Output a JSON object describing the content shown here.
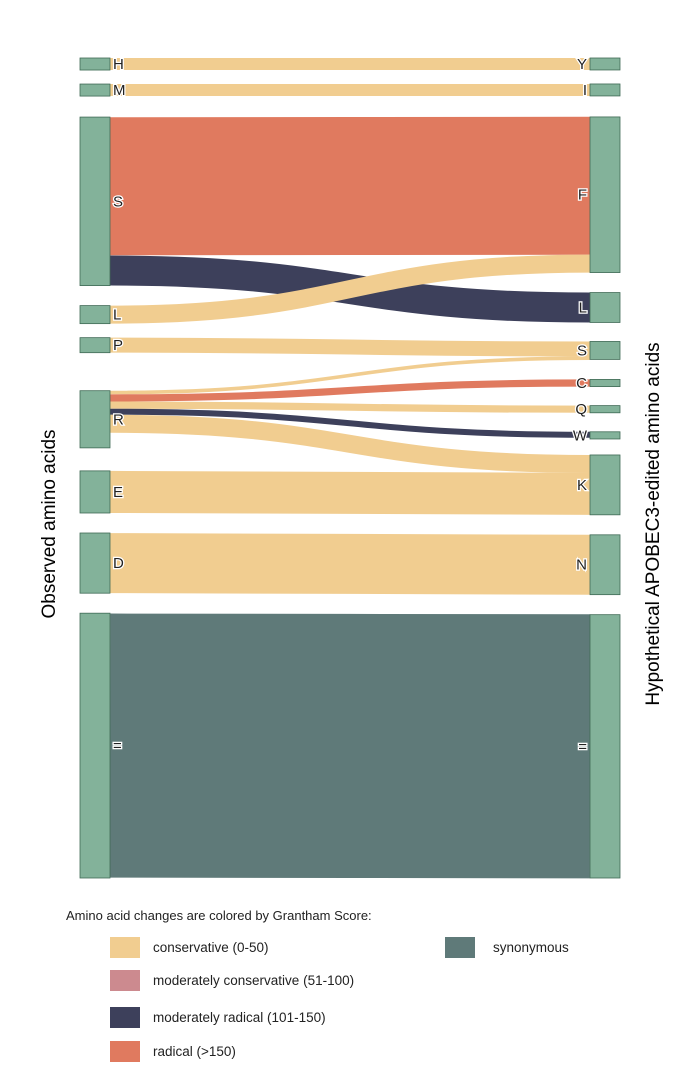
{
  "chart_data": {
    "type": "sankey",
    "left_axis_label": "Observed amino acids",
    "right_axis_label": "Hypothetical APOBEC3-edited amino acids",
    "left_nodes": [
      {
        "label": "H",
        "value": 2
      },
      {
        "label": "M",
        "value": 2
      },
      {
        "label": "S",
        "value": 28
      },
      {
        "label": "L",
        "value": 3
      },
      {
        "label": "P",
        "value": 2.5
      },
      {
        "label": "R",
        "value": 7
      },
      {
        "label": "E",
        "value": 7
      },
      {
        "label": "D",
        "value": 10
      },
      {
        "label": "=",
        "value": 44
      }
    ],
    "right_nodes": [
      {
        "label": "Y",
        "value": 2
      },
      {
        "label": "I",
        "value": 2
      },
      {
        "label": "F",
        "value": 26
      },
      {
        "label": "L",
        "value": 5
      },
      {
        "label": "S",
        "value": 3
      },
      {
        "label": "C",
        "value": 1.2
      },
      {
        "label": "Q",
        "value": 1.2
      },
      {
        "label": "W",
        "value": 1.2
      },
      {
        "label": "K",
        "value": 10
      },
      {
        "label": "N",
        "value": 10
      },
      {
        "label": "=",
        "value": 44
      }
    ],
    "links": [
      {
        "source": "H",
        "target": "Y",
        "value": 2,
        "category": "conservative"
      },
      {
        "source": "M",
        "target": "I",
        "value": 2,
        "category": "conservative"
      },
      {
        "source": "S",
        "target": "F",
        "value": 23,
        "category": "radical"
      },
      {
        "source": "S",
        "target": "L",
        "value": 5,
        "category": "moderately_radical"
      },
      {
        "source": "L",
        "target": "F",
        "value": 3,
        "category": "conservative"
      },
      {
        "source": "P",
        "target": "S",
        "value": 2.5,
        "category": "conservative"
      },
      {
        "source": "R",
        "target": "S",
        "value": 0.6,
        "category": "conservative"
      },
      {
        "source": "R",
        "target": "C",
        "value": 1.2,
        "category": "radical"
      },
      {
        "source": "R",
        "target": "Q",
        "value": 1.2,
        "category": "conservative"
      },
      {
        "source": "R",
        "target": "W",
        "value": 1.0,
        "category": "moderately_radical"
      },
      {
        "source": "R",
        "target": "K",
        "value": 3,
        "category": "conservative"
      },
      {
        "source": "E",
        "target": "K",
        "value": 7,
        "category": "conservative"
      },
      {
        "source": "D",
        "target": "N",
        "value": 10,
        "category": "conservative"
      },
      {
        "source": "=",
        "target": "=",
        "value": 44,
        "category": "synonymous"
      }
    ],
    "legend": {
      "title": "Amino acid changes are colored by Grantham Score:",
      "items": [
        {
          "key": "conservative",
          "label": "conservative (0-50)",
          "color": "#f1cd90"
        },
        {
          "key": "moderately_conservative",
          "label": "moderately conservative (51-100)",
          "color": "#cc8a8f"
        },
        {
          "key": "moderately_radical",
          "label": "moderately radical (101-150)",
          "color": "#3d405b"
        },
        {
          "key": "radical",
          "label": "radical (>150)",
          "color": "#e07a5f"
        },
        {
          "key": "synonymous",
          "label": "synonymous",
          "color": "#5f7a79"
        }
      ]
    },
    "node_color": "#83b29a"
  }
}
